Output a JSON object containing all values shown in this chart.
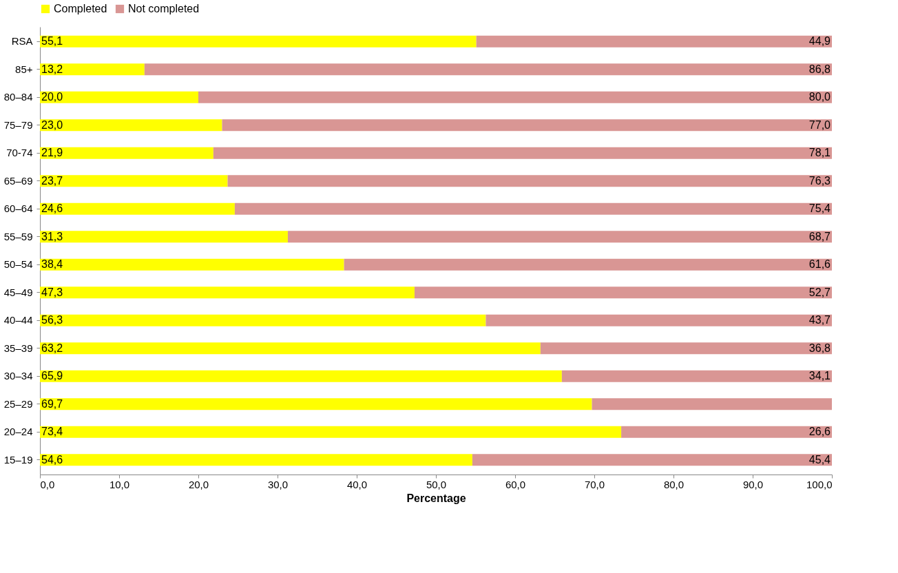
{
  "chart_data": {
    "type": "bar",
    "orientation": "horizontal",
    "stacked": true,
    "xlabel": "Percentage",
    "legend": "top",
    "grid": false,
    "categories": [
      "RSA",
      "85+",
      "80–84",
      "75–79",
      "70-74",
      "65–69",
      "60–64",
      "55–59",
      "50–54",
      "45–49",
      "40–44",
      "35–39",
      "30–34",
      "25–29",
      "20–24",
      "15–19"
    ],
    "xlim": [
      0,
      100
    ],
    "xticks": [
      {
        "value": 0,
        "label": "0,0"
      },
      {
        "value": 10,
        "label": "10,0"
      },
      {
        "value": 20,
        "label": "20,0"
      },
      {
        "value": 30,
        "label": "30,0"
      },
      {
        "value": 40,
        "label": "40,0"
      },
      {
        "value": 50,
        "label": "50,0"
      },
      {
        "value": 60,
        "label": "60,0"
      },
      {
        "value": 70,
        "label": "70,0"
      },
      {
        "value": 80,
        "label": "80,0"
      },
      {
        "value": 90,
        "label": "90,0"
      },
      {
        "value": 100,
        "label": "100,0"
      }
    ],
    "series": [
      {
        "name": "Completed",
        "color": "#ffff00",
        "values": [
          55.1,
          13.2,
          20.0,
          23.0,
          21.9,
          23.7,
          24.6,
          31.3,
          38.4,
          47.3,
          56.3,
          63.2,
          65.9,
          69.7,
          73.4,
          54.6
        ],
        "value_labels": [
          "55,1",
          "13,2",
          "20,0",
          "23,0",
          "21,9",
          "23,7",
          "24,6",
          "31,3",
          "38,4",
          "47,3",
          "56,3",
          "63,2",
          "65,9",
          "69,7",
          "73,4",
          "54,6"
        ]
      },
      {
        "name": "Not completed",
        "color": "#d99694",
        "values": [
          44.9,
          86.8,
          80.0,
          77.0,
          78.1,
          76.3,
          75.4,
          68.7,
          61.6,
          52.7,
          43.7,
          36.8,
          34.1,
          30.3,
          26.6,
          45.4
        ],
        "value_labels": [
          "44,9",
          "86,8",
          "80,0",
          "77,0",
          "78,1",
          "76,3",
          "75,4",
          "68,7",
          "61,6",
          "52,7",
          "43,7",
          "36,8",
          "34,1",
          null,
          "26,6",
          "45,4"
        ]
      }
    ]
  }
}
